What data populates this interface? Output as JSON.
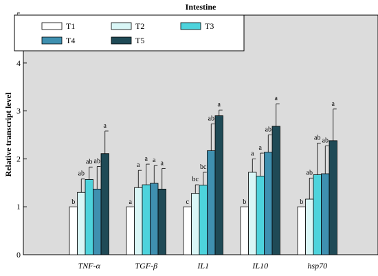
{
  "chart_data": {
    "type": "bar",
    "title": "Intestine",
    "ylabel": "Relative transcript level",
    "xlabel": "",
    "ylim": [
      0,
      5
    ],
    "yticks": [
      "0",
      "1",
      "2",
      "3",
      "4",
      "5"
    ],
    "background": "#dcdcdc",
    "grid": false,
    "legend_position": "top-left",
    "categories": [
      "TNF-α",
      "TGF-β",
      "IL1",
      "IL10",
      "hsp70"
    ],
    "series": [
      {
        "name": "T1",
        "color": "#ffffff",
        "values": [
          1.0,
          1.0,
          1.0,
          1.0,
          1.0
        ],
        "errors": [
          0.0,
          0.0,
          0.0,
          0.0,
          0.0
        ],
        "labels": [
          "b",
          "a",
          "c",
          "b",
          "b"
        ]
      },
      {
        "name": "T2",
        "color": "#d9f6f6",
        "values": [
          1.3,
          1.4,
          1.28,
          1.72,
          1.16
        ],
        "errors": [
          0.28,
          0.36,
          0.18,
          0.28,
          0.44
        ],
        "labels": [
          "ab",
          "a",
          "bc",
          "a",
          "ab"
        ]
      },
      {
        "name": "T3",
        "color": "#4dd3dc",
        "values": [
          1.57,
          1.46,
          1.45,
          1.64,
          1.67
        ],
        "errors": [
          0.26,
          0.43,
          0.27,
          0.48,
          0.66
        ],
        "labels": [
          "ab",
          "a",
          "bc",
          "a",
          "ab"
        ]
      },
      {
        "name": "T4",
        "color": "#3f90b0",
        "values": [
          1.37,
          1.49,
          2.17,
          2.14,
          1.69
        ],
        "errors": [
          0.47,
          0.37,
          0.56,
          0.36,
          0.58
        ],
        "labels": [
          "ab",
          "a",
          "ab",
          "ab",
          "ab"
        ]
      },
      {
        "name": "T5",
        "color": "#1f4a56",
        "values": [
          2.11,
          1.37,
          2.9,
          2.68,
          2.38
        ],
        "errors": [
          0.47,
          0.43,
          0.12,
          0.47,
          0.66
        ],
        "labels": [
          "a",
          "a",
          "a",
          "a",
          "a"
        ]
      }
    ]
  }
}
